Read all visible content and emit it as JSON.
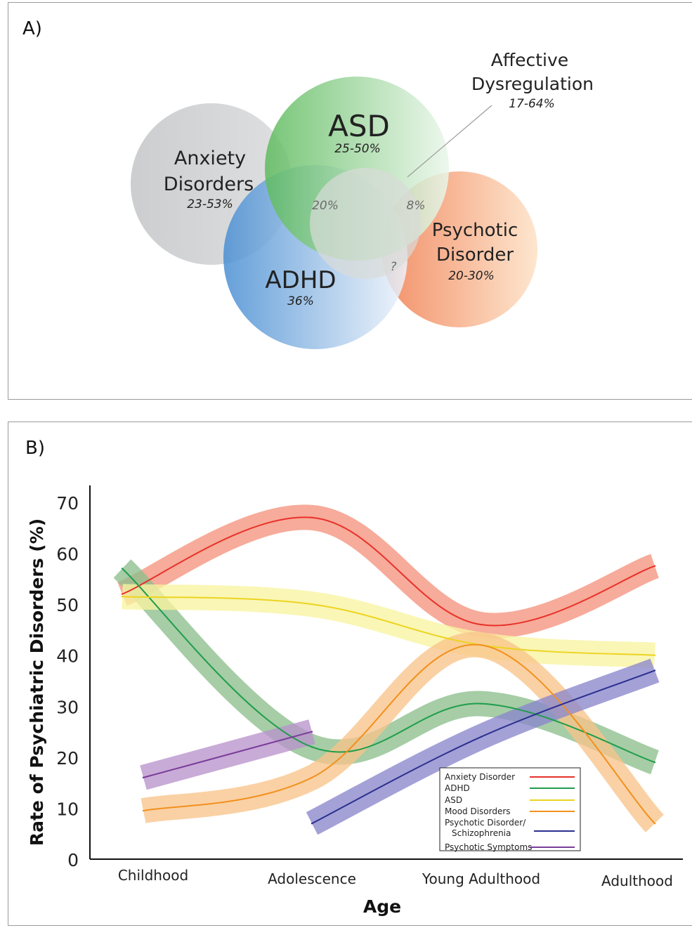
{
  "panel_a": {
    "label": "A)",
    "circles": [
      {
        "id": "anxiety",
        "name_lines": [
          "Anxiety",
          "Disorders"
        ],
        "range": "23-53%",
        "color_main": "#c8c9cb",
        "color_light": "#dcdddf"
      },
      {
        "id": "asd",
        "name_lines": [
          "ASD"
        ],
        "range": "25-50%",
        "color_main": "#5fbb5f",
        "color_light": "#eaf6ea"
      },
      {
        "id": "adhd",
        "name_lines": [
          "ADHD"
        ],
        "range": "36%",
        "color_main": "#4a8fd3",
        "color_light": "#eef3fb"
      },
      {
        "id": "psychotic",
        "name_lines": [
          "Psychotic",
          "Disorder"
        ],
        "range": "20-30%",
        "color_main": "#f07c4e",
        "color_light": "#fde2c6"
      },
      {
        "id": "affective",
        "name_lines": [],
        "range": "",
        "color_main": "#d8dcd8",
        "color_light": "#d8dcd8"
      }
    ],
    "affective_callout": {
      "lines": [
        "Affective",
        "Dysregulation"
      ],
      "range": "17-64%"
    },
    "overlaps": [
      {
        "id": "asd-adhd",
        "text": "20%"
      },
      {
        "id": "asd-psychotic",
        "text": "8%"
      },
      {
        "id": "adhd-psychotic",
        "text": "?"
      }
    ]
  },
  "panel_b": {
    "label": "B)",
    "chart_data": {
      "type": "line",
      "xlabel": "Age",
      "ylabel": "Rate of Psychiatric Disorders (%)",
      "categories": [
        "Childhood",
        "Adolescence",
        "Young Adulthood",
        "Adulthood"
      ],
      "ylim": [
        0,
        70
      ],
      "yticks": [
        0,
        10,
        20,
        30,
        40,
        50,
        60,
        70
      ],
      "legend_position": "bottom-right",
      "series": [
        {
          "name": "Anxiety Disorder",
          "color": "#e8312a",
          "band": "#f5937d",
          "points": [
            [
              0,
              52
            ],
            [
              1,
              67
            ],
            [
              2,
              46
            ],
            [
              3,
              57.5
            ]
          ]
        },
        {
          "name": "ADHD",
          "color": "#1f9d4c",
          "band": "#8dbf8d",
          "points": [
            [
              0,
              57
            ],
            [
              1,
              22
            ],
            [
              2,
              30.5
            ],
            [
              3,
              19
            ]
          ]
        },
        {
          "name": "ASD",
          "color": "#ecd421",
          "band": "#f8f4a0",
          "points": [
            [
              0,
              51.5
            ],
            [
              1,
              50
            ],
            [
              2,
              42
            ],
            [
              3,
              40
            ]
          ]
        },
        {
          "name": "Mood Disorders",
          "color": "#f2901e",
          "band": "#f9c48a",
          "points": [
            [
              0,
              9.5
            ],
            [
              1,
              16
            ],
            [
              2,
              42
            ],
            [
              3,
              7
            ]
          ]
        },
        {
          "name": "Psychotic Disorder/ Schizophrenia",
          "color": "#2b2f8f",
          "band": "#8a86cc",
          "legend_lines": [
            "Psychotic Disorder/",
            "Schizophrenia"
          ],
          "points": [
            [
              1,
              7
            ],
            [
              2,
              24
            ],
            [
              3,
              37
            ]
          ]
        },
        {
          "name": "Psychotic Symptoms",
          "color": "#7a3d99",
          "band": "#b994cc",
          "points": [
            [
              0,
              16
            ],
            [
              1,
              25
            ]
          ]
        }
      ]
    }
  }
}
